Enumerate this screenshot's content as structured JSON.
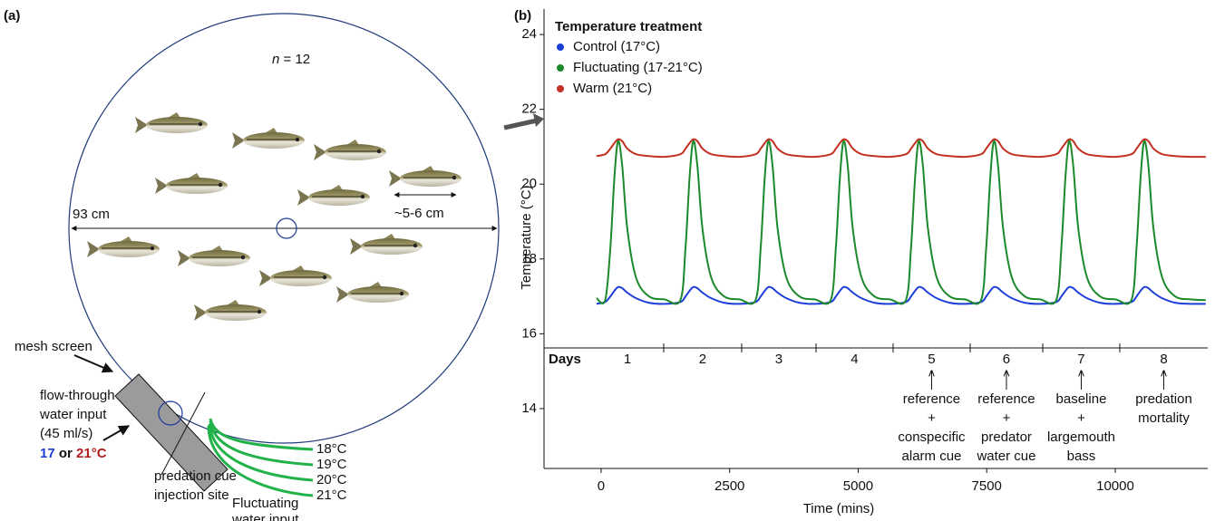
{
  "diagram": {
    "panel_label": "(a)",
    "count": {
      "symbol": "n",
      "text": " = 12"
    },
    "diameter": "93 cm",
    "fish_length": "~5-6 cm",
    "mesh": "mesh screen",
    "inflow": [
      "flow-through",
      "water input",
      "(45 ml/s)"
    ],
    "inflow_temps": {
      "low": "17",
      "joiner": " or ",
      "high": "21°C"
    },
    "injection": [
      "predation cue",
      "injection site"
    ],
    "fluct_temps": [
      "18°C",
      "19°C",
      "20°C",
      "21°C"
    ],
    "fluct_label": [
      "Fluctuating",
      "water input"
    ]
  },
  "chart_data": {
    "type": "line",
    "panel_label": "(b)",
    "legend_title": "Temperature treatment",
    "xlabel": "Time (mins)",
    "ylabel": "Temperature (°C)",
    "xlim": [
      -1110,
      11940
    ],
    "ylim": [
      12.4,
      24.68
    ],
    "xticks": [
      0,
      2500,
      5000,
      7500,
      10000
    ],
    "yticks": [
      14,
      16,
      18,
      20,
      22,
      24
    ],
    "x": [
      -90,
      80,
      180,
      260,
      330,
      410,
      510,
      680,
      930,
      1230,
      1542,
      1642,
      1722,
      1792,
      1872,
      1972,
      2142,
      2392,
      2692,
      3004,
      3104,
      3184,
      3254,
      3334,
      3434,
      3604,
      3854,
      4154,
      4466,
      4566,
      4646,
      4716,
      4796,
      4896,
      5066,
      5316,
      5616,
      5928,
      6028,
      6108,
      6178,
      6258,
      6358,
      6528,
      6778,
      7078,
      7390,
      7490,
      7570,
      7640,
      7720,
      7820,
      7990,
      8240,
      8540,
      8852,
      8952,
      9032,
      9102,
      9182,
      9282,
      9452,
      9702,
      10002,
      10314,
      10414,
      10494,
      10564,
      10644,
      10744,
      10914,
      11164,
      11464,
      11760
    ],
    "series": [
      {
        "name": "Control (17°C)",
        "color": "#1d3fd8",
        "values": [
          16.8,
          16.85,
          17.0,
          17.15,
          17.25,
          17.22,
          17.1,
          16.95,
          16.83,
          16.8,
          16.85,
          17.0,
          17.15,
          17.25,
          17.22,
          17.1,
          16.95,
          16.83,
          16.8,
          16.85,
          17.0,
          17.15,
          17.25,
          17.22,
          17.1,
          16.95,
          16.83,
          16.8,
          16.85,
          17.0,
          17.15,
          17.25,
          17.22,
          17.1,
          16.95,
          16.83,
          16.8,
          16.85,
          17.0,
          17.15,
          17.25,
          17.22,
          17.1,
          16.95,
          16.83,
          16.8,
          16.85,
          17.0,
          17.15,
          17.25,
          17.22,
          17.1,
          16.95,
          16.83,
          16.8,
          16.85,
          17.0,
          17.15,
          17.25,
          17.22,
          17.1,
          16.95,
          16.83,
          16.8,
          16.85,
          17.0,
          17.15,
          17.25,
          17.22,
          17.1,
          16.95,
          16.83,
          16.8,
          16.8
        ]
      },
      {
        "name": "Fluctuating (17-21°C)",
        "color": "#1c8a2c",
        "values": [
          16.95,
          16.9,
          18.3,
          20.2,
          21.15,
          20.5,
          18.8,
          17.5,
          17.0,
          16.92,
          16.9,
          18.3,
          20.2,
          21.15,
          20.5,
          18.8,
          17.5,
          17.0,
          16.92,
          16.9,
          18.3,
          20.2,
          21.15,
          20.5,
          18.8,
          17.5,
          17.0,
          16.92,
          16.9,
          18.3,
          20.2,
          21.15,
          20.5,
          18.8,
          17.5,
          17.0,
          16.92,
          16.9,
          18.3,
          20.2,
          21.15,
          20.5,
          18.8,
          17.5,
          17.0,
          16.92,
          16.9,
          18.3,
          20.2,
          21.15,
          20.5,
          18.8,
          17.5,
          17.0,
          16.92,
          16.9,
          18.3,
          20.2,
          21.15,
          20.5,
          18.8,
          17.5,
          17.0,
          16.92,
          16.9,
          18.3,
          20.2,
          21.15,
          20.5,
          18.8,
          17.5,
          17.0,
          16.92,
          16.9
        ]
      },
      {
        "name": "Warm (21°C)",
        "color": "#c23222",
        "values": [
          20.75,
          20.8,
          20.95,
          21.1,
          21.2,
          21.15,
          20.95,
          20.8,
          20.75,
          20.73,
          20.8,
          20.95,
          21.1,
          21.2,
          21.15,
          20.95,
          20.8,
          20.75,
          20.73,
          20.8,
          20.95,
          21.1,
          21.2,
          21.15,
          20.95,
          20.8,
          20.75,
          20.73,
          20.8,
          20.95,
          21.1,
          21.2,
          21.15,
          20.95,
          20.8,
          20.75,
          20.73,
          20.8,
          20.95,
          21.1,
          21.2,
          21.15,
          20.95,
          20.8,
          20.75,
          20.73,
          20.8,
          20.95,
          21.1,
          21.2,
          21.15,
          20.95,
          20.8,
          20.75,
          20.73,
          20.8,
          20.95,
          21.1,
          21.2,
          21.15,
          20.95,
          20.8,
          20.75,
          20.73,
          20.8,
          20.95,
          21.1,
          21.2,
          21.15,
          20.95,
          20.8,
          20.75,
          20.73,
          20.73
        ]
      }
    ],
    "days": {
      "label": "Days",
      "names": [
        "1",
        "2",
        "3",
        "4",
        "5",
        "6",
        "7",
        "8"
      ],
      "bounds": [
        -190,
        1217,
        2734,
        4180,
        5679,
        7178,
        8589,
        10088,
        11800
      ],
      "notes": [
        null,
        null,
        null,
        null,
        [
          "reference",
          "+",
          "conspecific",
          "alarm cue"
        ],
        [
          "reference",
          "+",
          "predator",
          "water cue"
        ],
        [
          "baseline",
          "+",
          "largemouth",
          "bass"
        ],
        [
          "predation",
          "mortality"
        ]
      ]
    }
  }
}
